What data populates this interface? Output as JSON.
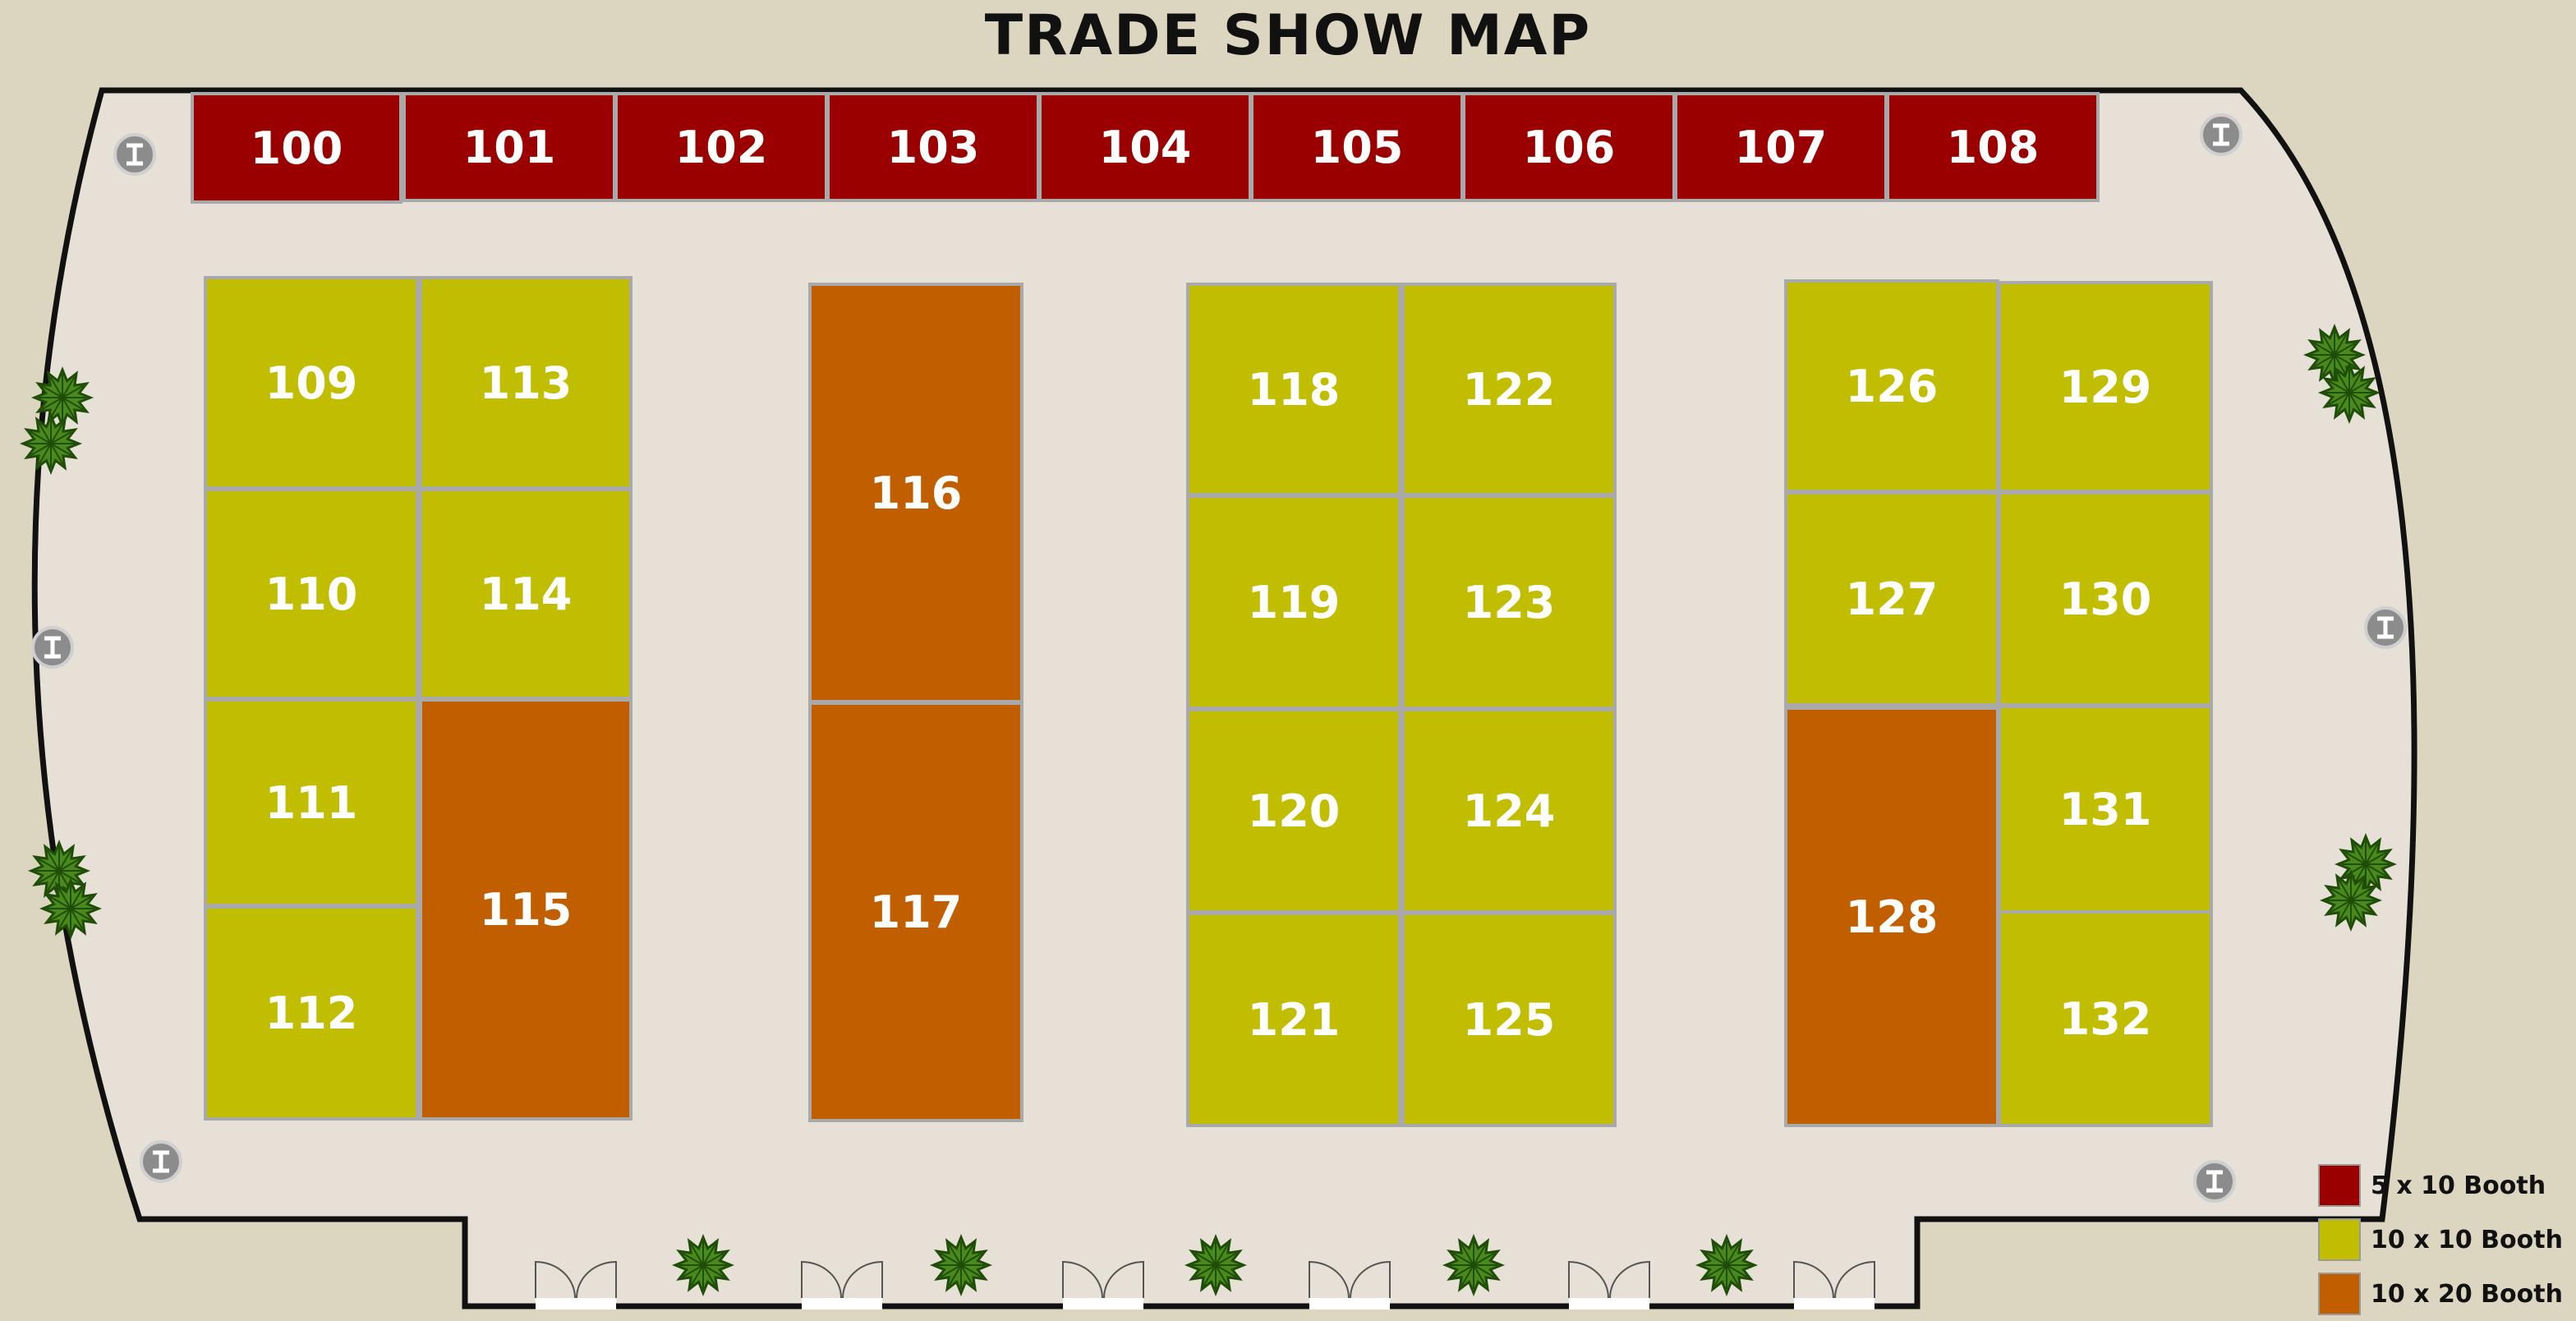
{
  "title": "TRADE SHOW MAP",
  "colors": {
    "background": "#dcd6c0",
    "floor": "#e6e0d6",
    "wall": "#111111",
    "booth_5x10": "#9b0000",
    "booth_10x10": "#c1bd00",
    "booth_10x20": "#c15f00",
    "booth_border": "#a9a9a9",
    "plant": "#4a8a1a",
    "column": "#8c8c8c"
  },
  "booth_types": {
    "5x10": "5 x 10 Booth",
    "10x10": "10 x 10 Booth",
    "10x20": "10 x 20 Booth"
  },
  "booths": [
    {
      "id": "100",
      "type": "5x10"
    },
    {
      "id": "101",
      "type": "5x10"
    },
    {
      "id": "102",
      "type": "5x10"
    },
    {
      "id": "103",
      "type": "5x10"
    },
    {
      "id": "104",
      "type": "5x10"
    },
    {
      "id": "105",
      "type": "5x10"
    },
    {
      "id": "106",
      "type": "5x10"
    },
    {
      "id": "107",
      "type": "5x10"
    },
    {
      "id": "108",
      "type": "5x10"
    },
    {
      "id": "109",
      "type": "10x10"
    },
    {
      "id": "110",
      "type": "10x10"
    },
    {
      "id": "111",
      "type": "10x10"
    },
    {
      "id": "112",
      "type": "10x10"
    },
    {
      "id": "113",
      "type": "10x10"
    },
    {
      "id": "114",
      "type": "10x10"
    },
    {
      "id": "115",
      "type": "10x20"
    },
    {
      "id": "116",
      "type": "10x20"
    },
    {
      "id": "117",
      "type": "10x20"
    },
    {
      "id": "118",
      "type": "10x10"
    },
    {
      "id": "119",
      "type": "10x10"
    },
    {
      "id": "120",
      "type": "10x10"
    },
    {
      "id": "121",
      "type": "10x10"
    },
    {
      "id": "122",
      "type": "10x10"
    },
    {
      "id": "123",
      "type": "10x10"
    },
    {
      "id": "124",
      "type": "10x10"
    },
    {
      "id": "125",
      "type": "10x10"
    },
    {
      "id": "126",
      "type": "10x10"
    },
    {
      "id": "127",
      "type": "10x10"
    },
    {
      "id": "128",
      "type": "10x20"
    },
    {
      "id": "129",
      "type": "10x10"
    },
    {
      "id": "130",
      "type": "10x10"
    },
    {
      "id": "131",
      "type": "10x10"
    },
    {
      "id": "132",
      "type": "10x10"
    }
  ],
  "legend": [
    {
      "type": "5x10",
      "label": "5 x 10 Booth"
    },
    {
      "type": "10x10",
      "label": "10 x 10 Booth"
    },
    {
      "type": "10x20",
      "label": "10 x 20 Booth"
    }
  ],
  "icons": {
    "column": "column-icon",
    "plant": "plant-icon",
    "door": "double-door-icon"
  }
}
